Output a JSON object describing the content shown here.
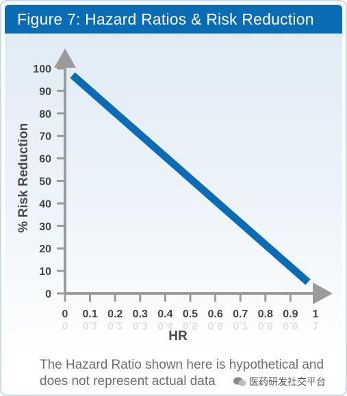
{
  "title": "Figure 7: Hazard Ratios & Risk Reduction",
  "caption": "The Hazard Ratio shown here is hypothetical and does not represent actual data",
  "watermark": "医药研发社交平台",
  "colors": {
    "title_bar": "#0a6cb5",
    "line": "#0a6cb5",
    "axis": "#9b9b9b",
    "tick_text": "#444444"
  },
  "chart_data": {
    "type": "line",
    "title": "Figure 7: Hazard Ratios & Risk Reduction",
    "xlabel": "HR",
    "ylabel": "% Risk Reduction",
    "x_ticks": [
      "0",
      "0.1",
      "0.2",
      "0.3",
      "0.4",
      "0.5",
      "0.6",
      "0.7",
      "0.8",
      "0.9",
      "1"
    ],
    "y_ticks": [
      "0",
      "10",
      "20",
      "30",
      "40",
      "50",
      "60",
      "70",
      "80",
      "90",
      "100"
    ],
    "xlim": [
      0,
      1
    ],
    "ylim": [
      0,
      100
    ],
    "grid": false,
    "series": [
      {
        "x": [
          0.03,
          0.97
        ],
        "y": [
          97,
          5
        ]
      }
    ]
  }
}
